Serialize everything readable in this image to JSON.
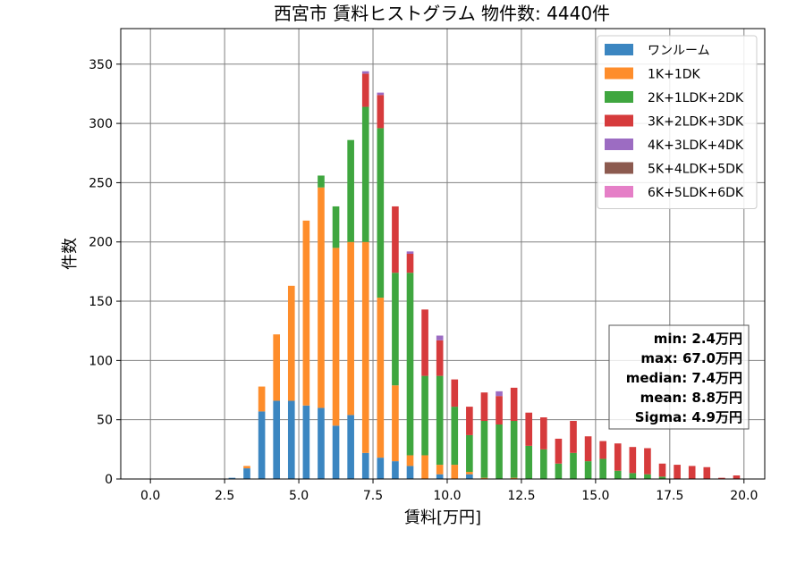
{
  "chart_data": {
    "type": "bar",
    "stacked": true,
    "title": "西宮市 賃料ヒストグラム 物件数: 4440件",
    "xlabel": "賃料[万円]",
    "ylabel": "件数",
    "xlim": [
      -1.0,
      20.7
    ],
    "ylim": [
      0,
      380
    ],
    "xticks": [
      0.0,
      2.5,
      5.0,
      7.5,
      10.0,
      12.5,
      15.0,
      17.5,
      20.0
    ],
    "xtick_labels": [
      "0.0",
      "2.5",
      "5.0",
      "7.5",
      "10.0",
      "12.5",
      "15.0",
      "17.5",
      "20.0"
    ],
    "yticks": [
      0,
      50,
      100,
      150,
      200,
      250,
      300,
      350
    ],
    "ytick_labels": [
      "0",
      "50",
      "100",
      "150",
      "200",
      "250",
      "300",
      "350"
    ],
    "grid": true,
    "legend_position": "top-right",
    "bin_width": 0.25,
    "x": [
      2.0,
      2.25,
      2.5,
      2.75,
      3.0,
      3.25,
      3.5,
      3.75,
      4.0,
      4.25,
      4.5,
      4.75,
      5.0,
      5.25,
      5.5,
      5.75,
      6.0,
      6.25,
      6.5,
      6.75,
      7.0,
      7.25,
      7.5,
      7.75,
      8.0,
      8.25,
      8.5,
      8.75,
      9.0,
      9.25,
      9.5,
      9.75,
      10.0,
      10.25,
      10.5,
      10.75,
      11.0,
      11.25,
      11.5,
      11.75,
      12.0,
      12.25,
      12.5,
      12.75,
      13.0,
      13.25,
      13.5,
      13.75,
      14.0,
      14.25,
      14.5,
      14.75,
      15.0,
      15.25,
      15.5,
      15.75,
      16.0,
      16.25,
      16.5,
      16.75,
      17.0,
      17.25,
      17.5,
      17.75,
      18.0,
      18.25,
      18.5,
      18.75,
      19.0,
      19.25,
      19.5,
      19.75
    ],
    "series": [
      {
        "name": "ワンルーム",
        "color": "#3b86c1",
        "values": [
          0,
          0,
          0,
          1,
          0,
          9,
          0,
          57,
          0,
          66,
          0,
          66,
          0,
          62,
          0,
          60,
          0,
          45,
          0,
          54,
          0,
          22,
          0,
          18,
          0,
          15,
          0,
          11,
          0,
          0,
          0,
          4,
          0,
          0,
          0,
          4,
          0,
          0,
          0,
          0,
          0,
          0,
          0,
          0,
          0,
          0,
          0,
          0,
          0,
          0,
          0,
          0,
          0,
          0,
          0,
          0,
          0,
          0,
          0,
          0,
          0,
          0,
          0,
          0,
          0,
          0,
          0,
          0,
          0,
          0,
          0,
          0
        ]
      },
      {
        "name": "1K+1DK",
        "color": "#fe8d2b",
        "values": [
          0,
          0,
          0,
          0,
          0,
          2,
          0,
          21,
          0,
          56,
          0,
          97,
          0,
          156,
          0,
          186,
          0,
          150,
          0,
          146,
          0,
          178,
          0,
          135,
          0,
          64,
          0,
          9,
          0,
          20,
          0,
          8,
          0,
          12,
          0,
          2,
          0,
          1,
          0,
          0,
          0,
          1,
          0,
          0,
          0,
          0,
          0,
          0,
          0,
          0,
          0,
          0,
          0,
          0,
          0,
          0,
          0,
          0,
          0,
          0,
          0,
          0,
          0,
          0,
          0,
          0,
          0,
          0,
          0,
          0,
          0,
          0
        ]
      },
      {
        "name": "2K+1LDK+2DK",
        "color": "#3fa63f",
        "values": [
          0,
          0,
          0,
          0,
          0,
          0,
          0,
          0,
          0,
          0,
          0,
          0,
          0,
          0,
          0,
          10,
          0,
          35,
          0,
          86,
          0,
          114,
          0,
          143,
          0,
          95,
          0,
          154,
          0,
          67,
          0,
          75,
          0,
          49,
          0,
          31,
          0,
          48,
          0,
          46,
          0,
          48,
          0,
          28,
          0,
          25,
          0,
          13,
          0,
          22,
          0,
          15,
          0,
          17,
          0,
          7,
          0,
          5,
          0,
          4,
          0,
          2,
          0,
          0,
          0,
          0,
          0,
          0,
          0,
          0,
          0,
          0
        ]
      },
      {
        "name": "3K+2LDK+3DK",
        "color": "#d63b3c",
        "values": [
          0,
          0,
          0,
          0,
          0,
          0,
          0,
          0,
          0,
          0,
          0,
          0,
          0,
          0,
          0,
          0,
          0,
          0,
          0,
          0,
          0,
          28,
          0,
          28,
          0,
          56,
          0,
          16,
          0,
          56,
          0,
          30,
          0,
          23,
          0,
          24,
          0,
          24,
          0,
          24,
          0,
          28,
          0,
          28,
          0,
          27,
          0,
          21,
          0,
          27,
          0,
          21,
          0,
          15,
          0,
          23,
          0,
          22,
          0,
          22,
          0,
          11,
          0,
          12,
          0,
          11,
          0,
          10,
          0,
          1,
          0,
          3
        ]
      },
      {
        "name": "4K+3LDK+4DK",
        "color": "#9c6cc2",
        "values": [
          0,
          0,
          0,
          0,
          0,
          0,
          0,
          0,
          0,
          0,
          0,
          0,
          0,
          0,
          0,
          0,
          0,
          0,
          0,
          0,
          0,
          2,
          0,
          2,
          0,
          0,
          0,
          2,
          0,
          0,
          0,
          4,
          0,
          0,
          0,
          0,
          0,
          0,
          0,
          4,
          0,
          0,
          0,
          0,
          0,
          0,
          0,
          0,
          0,
          0,
          0,
          0,
          0,
          0,
          0,
          0,
          0,
          0,
          0,
          0,
          0,
          0,
          0,
          0,
          0,
          0,
          0,
          0,
          0,
          0,
          0,
          0
        ]
      },
      {
        "name": "5K+4LDK+5DK",
        "color": "#8c5a4f",
        "values": [
          0,
          0,
          0,
          0,
          0,
          0,
          0,
          0,
          0,
          0,
          0,
          0,
          0,
          0,
          0,
          0,
          0,
          0,
          0,
          0,
          0,
          0,
          0,
          0,
          0,
          0,
          0,
          0,
          0,
          0,
          0,
          0,
          0,
          0,
          0,
          0,
          0,
          0,
          0,
          0,
          0,
          0,
          0,
          0,
          0,
          0,
          0,
          0,
          0,
          0,
          0,
          0,
          0,
          0,
          0,
          0,
          0,
          0,
          0,
          0,
          0,
          0,
          0,
          0,
          0,
          0,
          0,
          0,
          0,
          0,
          0,
          0
        ]
      },
      {
        "name": "6K+5LDK+6DK",
        "color": "#e57fc7",
        "values": [
          0,
          0,
          0,
          0,
          0,
          0,
          0,
          0,
          0,
          0,
          0,
          0,
          0,
          0,
          0,
          0,
          0,
          0,
          0,
          0,
          0,
          0,
          0,
          0,
          0,
          0,
          0,
          0,
          0,
          0,
          0,
          0,
          0,
          0,
          0,
          0,
          0,
          0,
          0,
          0,
          0,
          0,
          0,
          0,
          0,
          0,
          0,
          0,
          0,
          0,
          0,
          0,
          0,
          0,
          0,
          0,
          0,
          0,
          0,
          0,
          0,
          0,
          0,
          0,
          0,
          0,
          0,
          0,
          0,
          0,
          0,
          0
        ]
      }
    ],
    "stats": {
      "min": "min: 2.4万円",
      "max": "max: 67.0万円",
      "median": "median: 7.4万円",
      "mean": "mean: 8.8万円",
      "sigma": "Sigma: 4.9万円"
    }
  }
}
